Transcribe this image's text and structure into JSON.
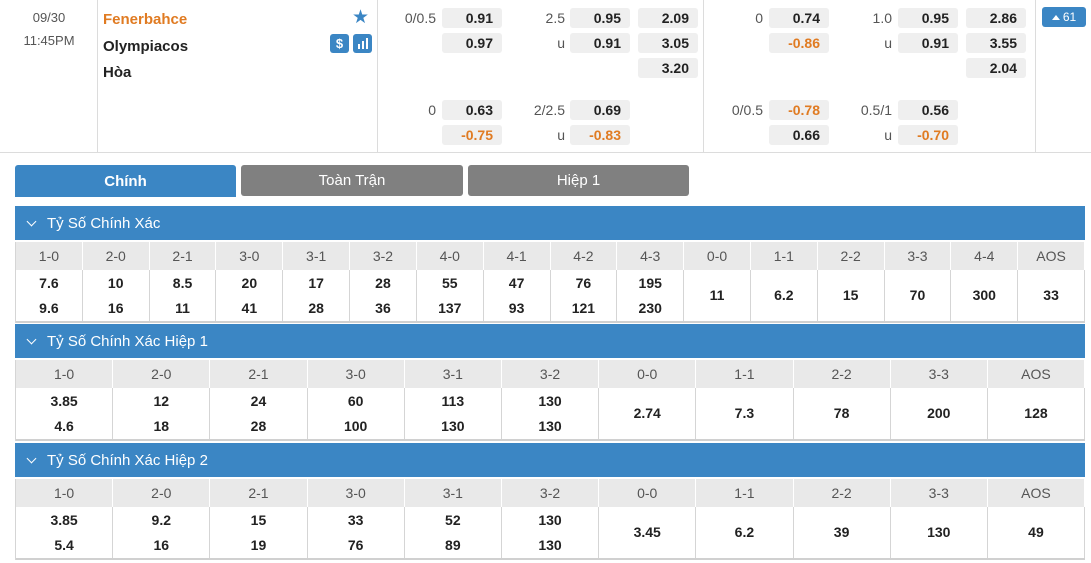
{
  "match": {
    "date": "09/30",
    "time": "11:45PM",
    "home": "Fenerbahce",
    "away": "Olympiacos",
    "draw": "Hòa",
    "more_count": "61",
    "money_icon": "$"
  },
  "odds": {
    "ft_handicap": {
      "line": "0/0.5",
      "home": "0.91",
      "away": "0.97"
    },
    "ft_total": {
      "line": "2.5",
      "over": "0.95",
      "under_label": "u",
      "under": "0.91"
    },
    "ft_1x2": {
      "home": "2.09",
      "away": "3.05",
      "draw": "3.20"
    },
    "h1_handicap": {
      "line": "0",
      "home": "0.74",
      "away": "-0.86"
    },
    "h1_total": {
      "line": "1.0",
      "over": "0.95",
      "under_label": "u",
      "under": "0.91"
    },
    "h1_1x2": {
      "home": "2.86",
      "away": "3.55",
      "draw": "2.04"
    },
    "alt_ft_handicap": {
      "line": "0",
      "home": "0.63",
      "away": "-0.75"
    },
    "alt_ft_total": {
      "line": "2/2.5",
      "over": "0.69",
      "under_label": "u",
      "under": "-0.83"
    },
    "alt_h1_handicap": {
      "line": "0/0.5",
      "home": "-0.78",
      "away": "0.66"
    },
    "alt_h1_total": {
      "line": "0.5/1",
      "over": "0.56",
      "under_label": "u",
      "under": "-0.70"
    }
  },
  "tabs": [
    "Chính",
    "Toàn Trận",
    "Hiệp 1"
  ],
  "sections": [
    {
      "title": "Tỷ Số Chính Xác",
      "headers": [
        "1-0",
        "2-0",
        "2-1",
        "3-0",
        "3-1",
        "3-2",
        "4-0",
        "4-1",
        "4-2",
        "4-3",
        "0-0",
        "1-1",
        "2-2",
        "3-3",
        "4-4",
        "AOS"
      ],
      "values": [
        [
          "7.6",
          "9.6"
        ],
        [
          "10",
          "16"
        ],
        [
          "8.5",
          "11"
        ],
        [
          "20",
          "41"
        ],
        [
          "17",
          "28"
        ],
        [
          "28",
          "36"
        ],
        [
          "55",
          "137"
        ],
        [
          "47",
          "93"
        ],
        [
          "76",
          "121"
        ],
        [
          "195",
          "230"
        ],
        [
          "11"
        ],
        [
          "6.2"
        ],
        [
          "15"
        ],
        [
          "70"
        ],
        [
          "300"
        ],
        [
          "33"
        ]
      ]
    },
    {
      "title": "Tỷ Số Chính Xác Hiệp 1",
      "headers": [
        "1-0",
        "2-0",
        "2-1",
        "3-0",
        "3-1",
        "3-2",
        "0-0",
        "1-1",
        "2-2",
        "3-3",
        "AOS"
      ],
      "values": [
        [
          "3.85",
          "4.6"
        ],
        [
          "12",
          "18"
        ],
        [
          "24",
          "28"
        ],
        [
          "60",
          "100"
        ],
        [
          "113",
          "130"
        ],
        [
          "130",
          "130"
        ],
        [
          "2.74"
        ],
        [
          "7.3"
        ],
        [
          "78"
        ],
        [
          "200"
        ],
        [
          "128"
        ]
      ]
    },
    {
      "title": "Tỷ Số Chính Xác Hiệp 2",
      "headers": [
        "1-0",
        "2-0",
        "2-1",
        "3-0",
        "3-1",
        "3-2",
        "0-0",
        "1-1",
        "2-2",
        "3-3",
        "AOS"
      ],
      "values": [
        [
          "3.85",
          "5.4"
        ],
        [
          "9.2",
          "16"
        ],
        [
          "15",
          "19"
        ],
        [
          "33",
          "76"
        ],
        [
          "52",
          "89"
        ],
        [
          "130",
          "130"
        ],
        [
          "3.45"
        ],
        [
          "6.2"
        ],
        [
          "39"
        ],
        [
          "130"
        ],
        [
          "49"
        ]
      ]
    }
  ],
  "colors": {
    "accent": "#3b86c4",
    "home": "#e07b22",
    "negative": "#e07b22",
    "tab_inactive": "#808080"
  }
}
